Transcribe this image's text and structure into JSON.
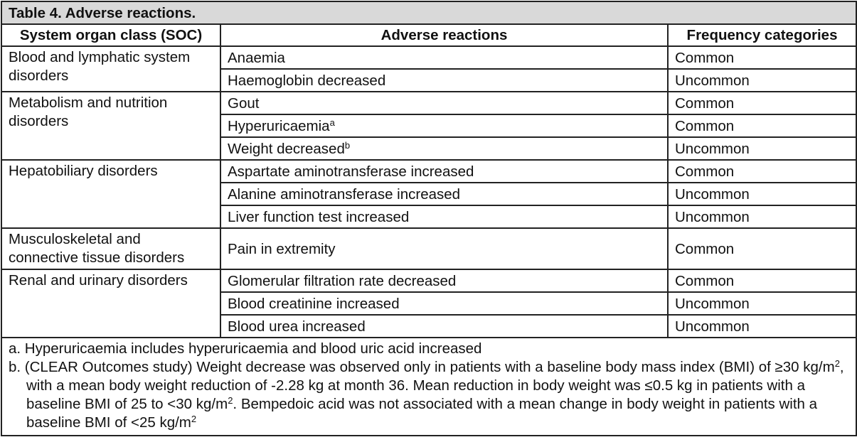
{
  "table": {
    "title": "Table 4. Adverse reactions.",
    "headers": {
      "soc": "System organ class (SOC)",
      "reaction": "Adverse reactions",
      "frequency": "Frequency categories"
    },
    "groups": [
      {
        "soc": "Blood and lymphatic system disorders",
        "rows": [
          {
            "reaction": "Anaemia",
            "sup": "",
            "frequency": "Common"
          },
          {
            "reaction": "Haemoglobin decreased",
            "sup": "",
            "frequency": "Uncommon"
          }
        ]
      },
      {
        "soc": "Metabolism and nutrition disorders",
        "rows": [
          {
            "reaction": "Gout",
            "sup": "",
            "frequency": "Common"
          },
          {
            "reaction": "Hyperuricaemia",
            "sup": "a",
            "frequency": "Common"
          },
          {
            "reaction": "Weight decreased",
            "sup": "b",
            "frequency": "Uncommon"
          }
        ]
      },
      {
        "soc": "Hepatobiliary disorders",
        "rows": [
          {
            "reaction": "Aspartate aminotransferase increased",
            "sup": "",
            "frequency": "Common"
          },
          {
            "reaction": "Alanine aminotransferase increased",
            "sup": "",
            "frequency": "Uncommon"
          },
          {
            "reaction": "Liver function test increased",
            "sup": "",
            "frequency": "Uncommon"
          }
        ]
      },
      {
        "soc": "Musculoskeletal and connective tissue disorders",
        "tall": true,
        "rows": [
          {
            "reaction": "Pain in extremity",
            "sup": "",
            "frequency": "Common"
          }
        ]
      },
      {
        "soc": "Renal and urinary disorders",
        "rows": [
          {
            "reaction": "Glomerular filtration rate decreased",
            "sup": "",
            "frequency": "Common"
          },
          {
            "reaction": "Blood creatinine increased",
            "sup": "",
            "frequency": "Uncommon"
          },
          {
            "reaction": "Blood urea increased",
            "sup": "",
            "frequency": "Uncommon"
          }
        ]
      }
    ],
    "footnotes": {
      "a": "a. Hyperuricaemia includes hyperuricaemia and blood uric acid increased",
      "b_part1": "b. (CLEAR Outcomes study) Weight decrease was observed only in patients with a baseline body mass index (BMI) of ≥30 kg/m",
      "b_sup1": "2",
      "b_part2": ", with a mean body weight reduction of -2.28 kg at month 36. Mean reduction in body weight was ≤0.5 kg in patients with a baseline BMI of 25 to <30 kg/m",
      "b_sup2": "2",
      "b_part3": ". Bempedoic acid was not associated with a mean change in body weight in patients with a baseline BMI of <25 kg/m",
      "b_sup3": "2"
    }
  }
}
